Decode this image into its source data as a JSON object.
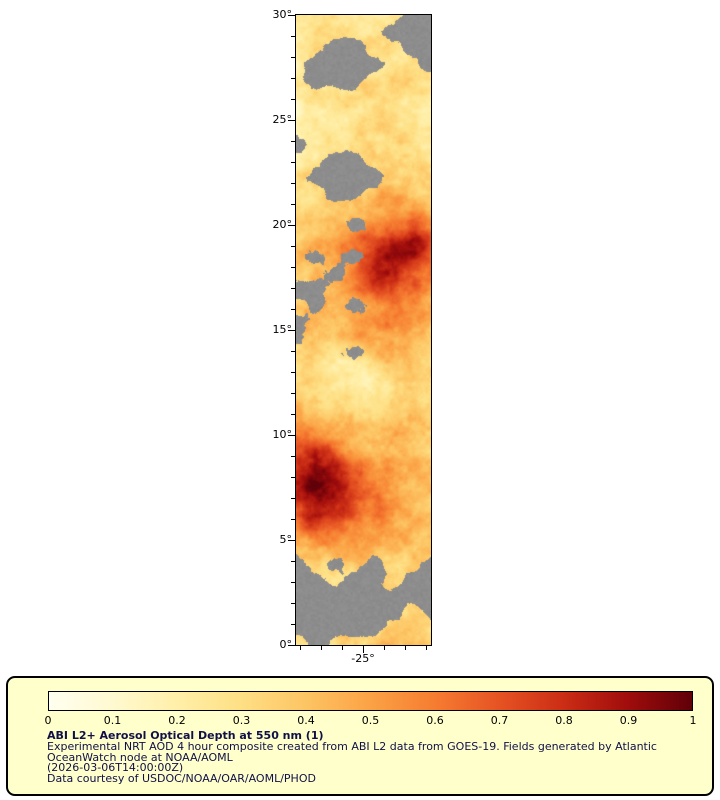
{
  "figure": {
    "background": "#ffffff"
  },
  "map": {
    "x_tick_label": "-25°",
    "missing_data_color": "#8d8d8d",
    "axis_color": "#000000"
  },
  "legend": {
    "background": "#ffffcc",
    "border_color": "#000000",
    "text_color": "#101048",
    "tick_color": "#000000",
    "title": "ABI L2+ Aerosol Optical Depth at 550 nm (1)",
    "lines": [
      "Experimental NRT AOD 4 hour composite created from ABI L2 data from GOES-19. Fields generated by Atlantic",
      "OceanWatch node at NOAA/AOML",
      "(2026-03-06T14:00:00Z)",
      "Data courtesy of USDOC/NOAA/OAR/AOML/PHOD"
    ]
  },
  "chart_data": {
    "type": "heatmap",
    "title": "ABI L2+ Aerosol Optical Depth at 550 nm (1)",
    "variable": "Aerosol Optical Depth at 550 nm",
    "satellite": "GOES-19",
    "x_axis": {
      "units": "degrees longitude",
      "ticks": [
        {
          "label": "-25°",
          "value": -25
        }
      ]
    },
    "y_axis": {
      "units": "degrees latitude",
      "range": [
        0,
        30
      ],
      "ticks": [
        {
          "label": "30°",
          "value": 30
        },
        {
          "label": "25°",
          "value": 25
        },
        {
          "label": "20°",
          "value": 20
        },
        {
          "label": "15°",
          "value": 15
        },
        {
          "label": "10°",
          "value": 10
        },
        {
          "label": "5°",
          "value": 5
        },
        {
          "label": "0°",
          "value": 0
        }
      ]
    },
    "colorbar": {
      "range": [
        0,
        1
      ],
      "tick_labels": [
        "0",
        "0.1",
        "0.2",
        "0.3",
        "0.4",
        "0.5",
        "0.6",
        "0.7",
        "0.8",
        "0.9",
        "1"
      ],
      "stops": [
        {
          "v": 0.0,
          "color": "#fffff0"
        },
        {
          "v": 0.1,
          "color": "#fff9d0"
        },
        {
          "v": 0.2,
          "color": "#ffefa8"
        },
        {
          "v": 0.3,
          "color": "#fedf84"
        },
        {
          "v": 0.4,
          "color": "#fdc463"
        },
        {
          "v": 0.5,
          "color": "#fba245"
        },
        {
          "v": 0.6,
          "color": "#f67c31"
        },
        {
          "v": 0.7,
          "color": "#e65323"
        },
        {
          "v": 0.8,
          "color": "#cb2d15"
        },
        {
          "v": 0.9,
          "color": "#a00d0c"
        },
        {
          "v": 1.0,
          "color": "#600008"
        }
      ]
    },
    "grid": {
      "note": "Coarse visual estimate of the AOD field: 8 longitude columns (west to east) x 40 latitude rows (30N at top to 0N at bottom); null = no retrieval (gray cloud/no-data).",
      "cols": 8,
      "rows": 40,
      "values": [
        [
          0.2,
          0.25,
          0.3,
          0.25,
          0.2,
          0.25,
          null,
          null
        ],
        [
          0.2,
          0.3,
          0.3,
          0.3,
          0.25,
          null,
          null,
          null
        ],
        [
          0.25,
          0.3,
          null,
          null,
          0.3,
          0.3,
          null,
          null
        ],
        [
          0.2,
          null,
          null,
          null,
          null,
          0.25,
          0.3,
          null
        ],
        [
          0.2,
          null,
          null,
          null,
          0.3,
          0.35,
          0.3,
          0.25
        ],
        [
          0.2,
          0.25,
          0.3,
          0.3,
          0.35,
          0.3,
          0.25,
          0.2
        ],
        [
          0.15,
          0.2,
          0.25,
          0.25,
          0.3,
          0.3,
          0.25,
          0.2
        ],
        [
          0.2,
          0.25,
          0.25,
          0.3,
          0.3,
          0.35,
          0.3,
          0.25
        ],
        [
          null,
          0.25,
          0.3,
          0.3,
          0.35,
          0.3,
          0.3,
          0.25
        ],
        [
          0.25,
          0.3,
          null,
          null,
          0.3,
          0.35,
          0.3,
          0.3
        ],
        [
          0.3,
          null,
          null,
          null,
          null,
          0.35,
          0.4,
          0.35
        ],
        [
          0.3,
          0.35,
          null,
          null,
          0.4,
          0.45,
          0.4,
          0.35
        ],
        [
          0.3,
          0.35,
          0.4,
          0.45,
          0.5,
          0.55,
          0.5,
          0.4
        ],
        [
          0.35,
          0.4,
          0.45,
          null,
          0.55,
          0.65,
          0.7,
          0.6
        ],
        [
          0.35,
          0.45,
          0.5,
          0.6,
          0.7,
          0.85,
          0.9,
          0.75
        ],
        [
          0.4,
          null,
          0.5,
          null,
          0.75,
          0.9,
          0.85,
          0.7
        ],
        [
          0.35,
          0.45,
          null,
          0.6,
          0.8,
          0.85,
          0.7,
          0.6
        ],
        [
          null,
          null,
          0.5,
          0.6,
          0.7,
          0.75,
          0.65,
          0.55
        ],
        [
          0.4,
          null,
          0.45,
          null,
          0.55,
          0.6,
          0.55,
          0.5
        ],
        [
          null,
          0.4,
          0.45,
          0.5,
          0.5,
          0.55,
          0.5,
          0.45
        ],
        [
          null,
          0.35,
          0.4,
          0.45,
          0.5,
          0.5,
          0.45,
          0.4
        ],
        [
          0.3,
          0.35,
          0.3,
          null,
          0.4,
          0.45,
          0.4,
          0.35
        ],
        [
          0.3,
          0.25,
          0.2,
          0.2,
          0.25,
          0.35,
          0.4,
          0.35
        ],
        [
          0.35,
          0.3,
          0.2,
          0.2,
          0.25,
          0.3,
          0.35,
          0.3
        ],
        [
          0.4,
          0.35,
          0.3,
          0.25,
          0.3,
          0.35,
          0.35,
          0.3
        ],
        [
          0.5,
          0.45,
          0.4,
          0.35,
          0.35,
          0.4,
          0.4,
          0.35
        ],
        [
          0.6,
          0.55,
          0.5,
          0.4,
          0.4,
          0.45,
          0.4,
          0.35
        ],
        [
          0.7,
          0.8,
          0.65,
          0.5,
          0.45,
          0.45,
          0.4,
          0.35
        ],
        [
          0.8,
          0.95,
          0.85,
          0.6,
          0.5,
          0.5,
          0.45,
          0.4
        ],
        [
          0.85,
          1.0,
          0.9,
          0.7,
          0.55,
          0.5,
          0.45,
          0.4
        ],
        [
          0.8,
          0.95,
          0.9,
          0.75,
          0.6,
          0.5,
          0.45,
          0.4
        ],
        [
          0.7,
          0.85,
          0.8,
          0.7,
          0.6,
          0.55,
          0.5,
          0.4
        ],
        [
          0.55,
          0.65,
          0.6,
          0.55,
          0.5,
          0.5,
          0.45,
          0.4
        ],
        [
          0.45,
          0.5,
          0.5,
          0.45,
          0.45,
          0.4,
          0.4,
          0.35
        ],
        [
          null,
          0.4,
          null,
          0.35,
          null,
          0.4,
          0.35,
          null
        ],
        [
          null,
          null,
          0.3,
          null,
          null,
          0.35,
          null,
          null
        ],
        [
          null,
          null,
          null,
          null,
          null,
          null,
          null,
          null
        ],
        [
          null,
          null,
          null,
          null,
          null,
          null,
          0.3,
          null
        ],
        [
          null,
          null,
          null,
          null,
          null,
          0.35,
          0.4,
          0.35
        ],
        [
          0.3,
          null,
          0.3,
          0.35,
          0.4,
          0.45,
          0.4,
          0.35
        ]
      ]
    }
  }
}
